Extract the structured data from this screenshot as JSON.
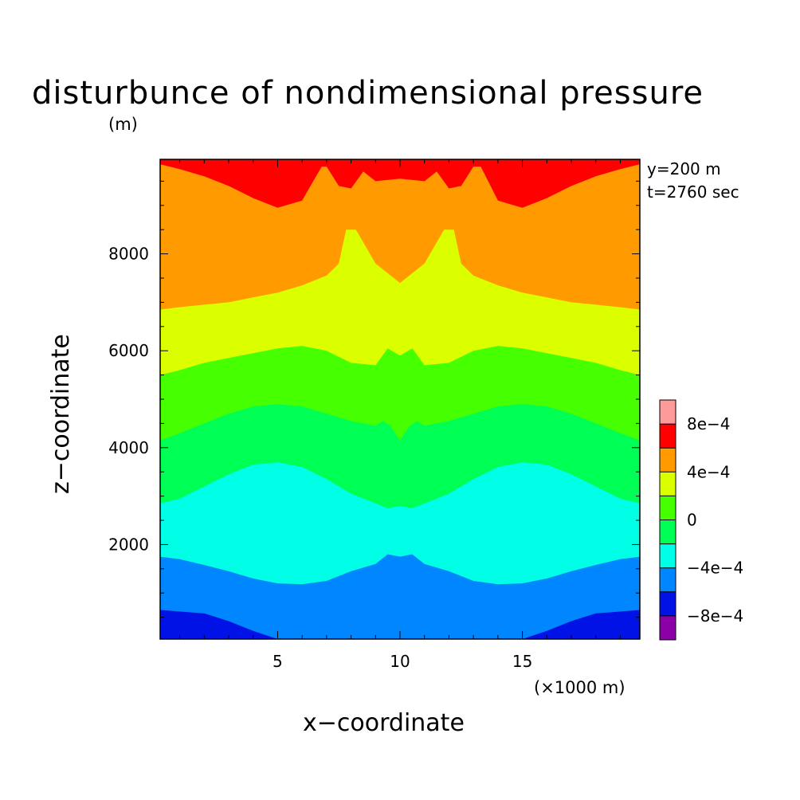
{
  "chart_data": {
    "type": "heatmap",
    "title": "disturbunce of nondimensional pressure",
    "xlabel": "x−coordinate",
    "ylabel": "z−coordinate",
    "x_unit": "(×1000 m)",
    "y_unit": "(m)",
    "xlim": [
      0.2,
      19.8
    ],
    "ylim": [
      50,
      9950
    ],
    "x_ticks": [
      5,
      10,
      15
    ],
    "x_tick_labels": [
      "5",
      "10",
      "15"
    ],
    "y_ticks": [
      2000,
      4000,
      6000,
      8000
    ],
    "y_tick_labels": [
      "2000",
      "4000",
      "6000",
      "8000"
    ],
    "annotations": [
      "y=200 m",
      "t=2760 sec"
    ],
    "colorbar": {
      "levels": [
        -0.001,
        -0.0008,
        -0.0006,
        -0.0004,
        -0.0002,
        0,
        0.0002,
        0.0004,
        0.0006,
        0.0008,
        0.001
      ],
      "colors": [
        "#8c00a8",
        "#0012e6",
        "#0087ff",
        "#00ffe6",
        "#00ff55",
        "#46ff00",
        "#dcff00",
        "#ff9b00",
        "#ff0000",
        "#ff9a9a"
      ],
      "tick_labels": [
        "−8e−4",
        "−4e−4",
        "0",
        "4e−4",
        "8e−4"
      ],
      "tick_values": [
        -0.0008,
        -0.0004,
        0,
        0.0004,
        0.0008
      ]
    },
    "contour_boundaries": [
      {
        "upper_band": "#0087ff",
        "x": [
          0.2,
          2,
          3,
          4,
          5,
          5.5,
          6,
          10,
          14,
          14.5,
          15,
          16,
          17,
          18,
          19.8
        ],
        "z": [
          650,
          580,
          420,
          220,
          30,
          50,
          50,
          50,
          50,
          50,
          30,
          220,
          420,
          580,
          650
        ]
      },
      {
        "upper_band": "#00ffe6",
        "x": [
          0.2,
          1,
          2,
          3,
          4,
          5,
          6,
          7,
          8,
          9,
          9.5,
          10,
          10.5,
          11,
          12,
          13,
          14,
          15,
          16,
          17,
          18,
          19,
          19.8
        ],
        "z": [
          1750,
          1700,
          1580,
          1450,
          1300,
          1200,
          1180,
          1250,
          1450,
          1600,
          1800,
          1750,
          1800,
          1600,
          1450,
          1250,
          1180,
          1200,
          1300,
          1450,
          1580,
          1700,
          1750
        ]
      },
      {
        "upper_band": "#00ff55",
        "x": [
          0.2,
          1,
          2,
          3,
          4,
          5,
          6,
          7,
          8,
          9,
          9.5,
          10,
          10.5,
          11,
          12,
          13,
          14,
          15,
          16,
          17,
          18,
          19,
          19.8
        ],
        "z": [
          2850,
          2950,
          3200,
          3450,
          3650,
          3700,
          3600,
          3350,
          3050,
          2850,
          2750,
          2800,
          2750,
          2850,
          3050,
          3350,
          3600,
          3700,
          3650,
          3450,
          3200,
          2950,
          2850
        ]
      },
      {
        "upper_band": "#46ff00",
        "x": [
          0.2,
          1,
          2,
          3,
          4,
          5,
          6,
          7,
          8,
          9,
          9.3,
          9.6,
          10,
          10.4,
          10.7,
          11,
          12,
          13,
          14,
          15,
          16,
          17,
          18,
          19,
          19.8
        ],
        "z": [
          4150,
          4300,
          4500,
          4700,
          4850,
          4900,
          4850,
          4700,
          4550,
          4450,
          4550,
          4450,
          4150,
          4450,
          4550,
          4450,
          4550,
          4700,
          4850,
          4900,
          4850,
          4700,
          4500,
          4300,
          4150
        ]
      },
      {
        "upper_band": "#dcff00",
        "x": [
          0.2,
          1,
          2,
          3,
          4,
          5,
          6,
          7,
          8,
          9,
          9.5,
          10,
          10.5,
          11,
          12,
          13,
          14,
          15,
          16,
          17,
          18,
          19,
          19.8
        ],
        "z": [
          5500,
          5600,
          5750,
          5850,
          5950,
          6050,
          6100,
          6000,
          5750,
          5700,
          6050,
          5900,
          6050,
          5700,
          5750,
          6000,
          6100,
          6050,
          5950,
          5850,
          5750,
          5600,
          5500
        ]
      },
      {
        "upper_band": "#ff9b00",
        "x": [
          0.2,
          1,
          2,
          3,
          4,
          5,
          6,
          7,
          7.5,
          7.8,
          8.2,
          9,
          10,
          11,
          11.8,
          12.2,
          12.5,
          13,
          14,
          15,
          16,
          17,
          18,
          19,
          19.8
        ],
        "z": [
          6850,
          6900,
          6950,
          7000,
          7100,
          7200,
          7350,
          7550,
          7800,
          8500,
          8500,
          7800,
          7400,
          7800,
          8500,
          8500,
          7800,
          7550,
          7350,
          7200,
          7100,
          7000,
          6950,
          6900,
          6850
        ]
      },
      {
        "upper_band": "#ff0000",
        "x": [
          0.2,
          1,
          2,
          3,
          4,
          5,
          6,
          6.8,
          7,
          7.5,
          8,
          8.5,
          9,
          10,
          11,
          11.5,
          12,
          12.5,
          13,
          13.3,
          14,
          15,
          16,
          17,
          18,
          19,
          19.8
        ],
        "z": [
          9850,
          9750,
          9600,
          9400,
          9150,
          8950,
          9100,
          9800,
          9800,
          9400,
          9350,
          9700,
          9500,
          9550,
          9500,
          9700,
          9350,
          9400,
          9800,
          9800,
          9100,
          8950,
          9150,
          9400,
          9600,
          9750,
          9850
        ]
      }
    ],
    "bottom_band": "#0012e6",
    "grid": false,
    "colorbar_position": "right"
  }
}
